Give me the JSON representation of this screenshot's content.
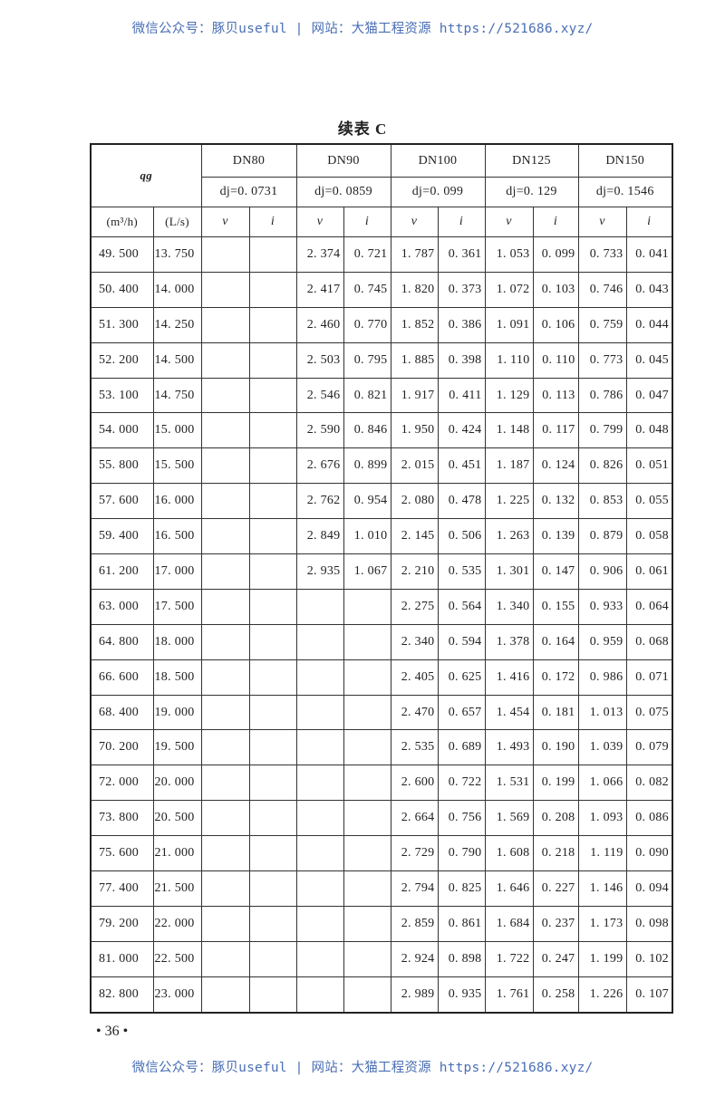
{
  "watermark": "微信公众号：豚贝useful | 网站：大猫工程资源 https://521686.xyz/",
  "title": "续表 C",
  "table": {
    "flow_header": "qg",
    "units": [
      "(m³/h)",
      "(L/s)"
    ],
    "groups": [
      {
        "name": "DN80",
        "diameter": "dj=0. 0731"
      },
      {
        "name": "DN90",
        "diameter": "dj=0. 0859"
      },
      {
        "name": "DN100",
        "diameter": "dj=0. 099"
      },
      {
        "name": "DN125",
        "diameter": "dj=0. 129"
      },
      {
        "name": "DN150",
        "diameter": "dj=0. 1546"
      }
    ],
    "subcols": [
      "v",
      "i"
    ],
    "rows": [
      [
        "49. 500",
        "13. 750",
        "",
        "",
        "2. 374",
        "0. 721",
        "1. 787",
        "0. 361",
        "1. 053",
        "0. 099",
        "0. 733",
        "0. 041"
      ],
      [
        "50. 400",
        "14. 000",
        "",
        "",
        "2. 417",
        "0. 745",
        "1. 820",
        "0. 373",
        "1. 072",
        "0. 103",
        "0. 746",
        "0. 043"
      ],
      [
        "51. 300",
        "14. 250",
        "",
        "",
        "2. 460",
        "0. 770",
        "1. 852",
        "0. 386",
        "1. 091",
        "0. 106",
        "0. 759",
        "0. 044"
      ],
      [
        "52. 200",
        "14. 500",
        "",
        "",
        "2. 503",
        "0. 795",
        "1. 885",
        "0. 398",
        "1. 110",
        "0. 110",
        "0. 773",
        "0. 045"
      ],
      [
        "53. 100",
        "14. 750",
        "",
        "",
        "2. 546",
        "0. 821",
        "1. 917",
        "0. 411",
        "1. 129",
        "0. 113",
        "0. 786",
        "0. 047"
      ],
      [
        "54. 000",
        "15. 000",
        "",
        "",
        "2. 590",
        "0. 846",
        "1. 950",
        "0. 424",
        "1. 148",
        "0. 117",
        "0. 799",
        "0. 048"
      ],
      [
        "55. 800",
        "15. 500",
        "",
        "",
        "2. 676",
        "0. 899",
        "2. 015",
        "0. 451",
        "1. 187",
        "0. 124",
        "0. 826",
        "0. 051"
      ],
      [
        "57. 600",
        "16. 000",
        "",
        "",
        "2. 762",
        "0. 954",
        "2. 080",
        "0. 478",
        "1. 225",
        "0. 132",
        "0. 853",
        "0. 055"
      ],
      [
        "59. 400",
        "16. 500",
        "",
        "",
        "2. 849",
        "1. 010",
        "2. 145",
        "0. 506",
        "1. 263",
        "0. 139",
        "0. 879",
        "0. 058"
      ],
      [
        "61. 200",
        "17. 000",
        "",
        "",
        "2. 935",
        "1. 067",
        "2. 210",
        "0. 535",
        "1. 301",
        "0. 147",
        "0. 906",
        "0. 061"
      ],
      [
        "63. 000",
        "17. 500",
        "",
        "",
        "",
        "",
        "2. 275",
        "0. 564",
        "1. 340",
        "0. 155",
        "0. 933",
        "0. 064"
      ],
      [
        "64. 800",
        "18. 000",
        "",
        "",
        "",
        "",
        "2. 340",
        "0. 594",
        "1. 378",
        "0. 164",
        "0. 959",
        "0. 068"
      ],
      [
        "66. 600",
        "18. 500",
        "",
        "",
        "",
        "",
        "2. 405",
        "0. 625",
        "1. 416",
        "0. 172",
        "0. 986",
        "0. 071"
      ],
      [
        "68. 400",
        "19. 000",
        "",
        "",
        "",
        "",
        "2. 470",
        "0. 657",
        "1. 454",
        "0. 181",
        "1. 013",
        "0. 075"
      ],
      [
        "70. 200",
        "19. 500",
        "",
        "",
        "",
        "",
        "2. 535",
        "0. 689",
        "1. 493",
        "0. 190",
        "1. 039",
        "0. 079"
      ],
      [
        "72. 000",
        "20. 000",
        "",
        "",
        "",
        "",
        "2. 600",
        "0. 722",
        "1. 531",
        "0. 199",
        "1. 066",
        "0. 082"
      ],
      [
        "73. 800",
        "20. 500",
        "",
        "",
        "",
        "",
        "2. 664",
        "0. 756",
        "1. 569",
        "0. 208",
        "1. 093",
        "0. 086"
      ],
      [
        "75. 600",
        "21. 000",
        "",
        "",
        "",
        "",
        "2. 729",
        "0. 790",
        "1. 608",
        "0. 218",
        "1. 119",
        "0. 090"
      ],
      [
        "77. 400",
        "21. 500",
        "",
        "",
        "",
        "",
        "2. 794",
        "0. 825",
        "1. 646",
        "0. 227",
        "1. 146",
        "0. 094"
      ],
      [
        "79. 200",
        "22. 000",
        "",
        "",
        "",
        "",
        "2. 859",
        "0. 861",
        "1. 684",
        "0. 237",
        "1. 173",
        "0. 098"
      ],
      [
        "81. 000",
        "22. 500",
        "",
        "",
        "",
        "",
        "2. 924",
        "0. 898",
        "1. 722",
        "0. 247",
        "1. 199",
        "0. 102"
      ],
      [
        "82. 800",
        "23. 000",
        "",
        "",
        "",
        "",
        "2. 989",
        "0. 935",
        "1. 761",
        "0. 258",
        "1. 226",
        "0. 107"
      ]
    ]
  },
  "page_number": "• 36 •"
}
